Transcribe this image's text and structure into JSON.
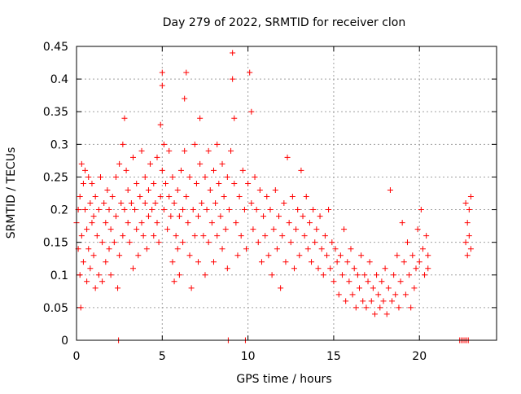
{
  "chart_data": {
    "type": "scatter",
    "title": "Day 279 of 2022, SRMTID for receiver clon",
    "xlabel": "GPS time / hours",
    "ylabel": "SRMTID / TECUs",
    "xlim": [
      0,
      24.5
    ],
    "ylim": [
      0,
      0.45
    ],
    "x_ticks": [
      0,
      5,
      10,
      15,
      20
    ],
    "x_tick_labels": [
      "0",
      "5",
      "10",
      "15",
      "20"
    ],
    "y_ticks": [
      0,
      0.05,
      0.1,
      0.15,
      0.2,
      0.25,
      0.3,
      0.35,
      0.4,
      0.45
    ],
    "y_tick_labels": [
      "0",
      "0.05",
      "0.1",
      "0.15",
      "0.2",
      "0.25",
      "0.3",
      "0.35",
      "0.4",
      "0.45"
    ],
    "grid": true,
    "legend": "none",
    "marker": "+",
    "color": "#ff0000",
    "series": [
      {
        "points": [
          [
            0.0,
            0.18
          ],
          [
            0.1,
            0.2
          ],
          [
            0.1,
            0.14
          ],
          [
            0.2,
            0.1
          ],
          [
            0.2,
            0.22
          ],
          [
            0.25,
            0.05
          ],
          [
            0.3,
            0.27
          ],
          [
            0.3,
            0.16
          ],
          [
            0.4,
            0.24
          ],
          [
            0.4,
            0.12
          ],
          [
            0.5,
            0.26
          ],
          [
            0.5,
            0.2
          ],
          [
            0.6,
            0.09
          ],
          [
            0.6,
            0.17
          ],
          [
            0.7,
            0.25
          ],
          [
            0.7,
            0.14
          ],
          [
            0.8,
            0.21
          ],
          [
            0.8,
            0.11
          ],
          [
            0.9,
            0.18
          ],
          [
            0.9,
            0.24
          ],
          [
            1.0,
            0.13
          ],
          [
            1.0,
            0.19
          ],
          [
            1.1,
            0.08
          ],
          [
            1.1,
            0.22
          ],
          [
            1.2,
            0.16
          ],
          [
            1.3,
            0.1
          ],
          [
            1.3,
            0.2
          ],
          [
            1.4,
            0.25
          ],
          [
            1.5,
            0.15
          ],
          [
            1.5,
            0.09
          ],
          [
            1.6,
            0.21
          ],
          [
            1.7,
            0.18
          ],
          [
            1.7,
            0.12
          ],
          [
            1.8,
            0.23
          ],
          [
            1.9,
            0.2
          ],
          [
            1.9,
            0.14
          ],
          [
            2.0,
            0.17
          ],
          [
            2.0,
            0.1
          ],
          [
            2.1,
            0.22
          ],
          [
            2.2,
            0.15
          ],
          [
            2.3,
            0.19
          ],
          [
            2.3,
            0.25
          ],
          [
            2.4,
            0.08
          ],
          [
            2.5,
            0.13
          ],
          [
            2.5,
            0.27
          ],
          [
            2.6,
            0.21
          ],
          [
            2.7,
            0.3
          ],
          [
            2.7,
            0.16
          ],
          [
            2.8,
            0.34
          ],
          [
            2.8,
            0.2
          ],
          [
            2.9,
            0.26
          ],
          [
            3.0,
            0.18
          ],
          [
            3.0,
            0.23
          ],
          [
            3.1,
            0.15
          ],
          [
            3.2,
            0.21
          ],
          [
            3.3,
            0.11
          ],
          [
            3.3,
            0.28
          ],
          [
            3.4,
            0.2
          ],
          [
            3.5,
            0.17
          ],
          [
            3.5,
            0.24
          ],
          [
            3.6,
            0.13
          ],
          [
            3.7,
            0.22
          ],
          [
            3.8,
            0.18
          ],
          [
            3.8,
            0.29
          ],
          [
            3.9,
            0.16
          ],
          [
            4.0,
            0.21
          ],
          [
            4.0,
            0.25
          ],
          [
            4.1,
            0.14
          ],
          [
            4.2,
            0.23
          ],
          [
            4.2,
            0.19
          ],
          [
            4.3,
            0.27
          ],
          [
            4.4,
            0.2
          ],
          [
            4.5,
            0.16
          ],
          [
            4.5,
            0.24
          ],
          [
            4.6,
            0.21
          ],
          [
            4.7,
            0.18
          ],
          [
            4.7,
            0.28
          ],
          [
            4.8,
            0.15
          ],
          [
            4.9,
            0.33
          ],
          [
            4.9,
            0.22
          ],
          [
            5.0,
            0.39
          ],
          [
            5.0,
            0.41
          ],
          [
            5.0,
            0.26
          ],
          [
            5.1,
            0.3
          ],
          [
            5.1,
            0.2
          ],
          [
            5.2,
            0.24
          ],
          [
            5.3,
            0.17
          ],
          [
            5.4,
            0.22
          ],
          [
            5.4,
            0.29
          ],
          [
            5.5,
            0.19
          ],
          [
            5.6,
            0.25
          ],
          [
            5.6,
            0.12
          ],
          [
            5.7,
            0.09
          ],
          [
            5.7,
            0.21
          ],
          [
            5.8,
            0.16
          ],
          [
            5.9,
            0.23
          ],
          [
            5.9,
            0.14
          ],
          [
            6.0,
            0.19
          ],
          [
            6.0,
            0.1
          ],
          [
            6.1,
            0.26
          ],
          [
            6.2,
            0.15
          ],
          [
            6.2,
            0.2
          ],
          [
            6.3,
            0.37
          ],
          [
            6.3,
            0.29
          ],
          [
            6.4,
            0.41
          ],
          [
            6.4,
            0.22
          ],
          [
            6.5,
            0.18
          ],
          [
            6.6,
            0.13
          ],
          [
            6.6,
            0.25
          ],
          [
            6.7,
            0.08
          ],
          [
            6.8,
            0.2
          ],
          [
            6.9,
            0.16
          ],
          [
            6.9,
            0.3
          ],
          [
            7.0,
            0.24
          ],
          [
            7.1,
            0.19
          ],
          [
            7.1,
            0.12
          ],
          [
            7.2,
            0.34
          ],
          [
            7.2,
            0.27
          ],
          [
            7.3,
            0.21
          ],
          [
            7.4,
            0.16
          ],
          [
            7.5,
            0.25
          ],
          [
            7.5,
            0.1
          ],
          [
            7.6,
            0.2
          ],
          [
            7.7,
            0.29
          ],
          [
            7.7,
            0.15
          ],
          [
            7.8,
            0.23
          ],
          [
            7.9,
            0.18
          ],
          [
            8.0,
            0.26
          ],
          [
            8.0,
            0.12
          ],
          [
            8.1,
            0.21
          ],
          [
            8.2,
            0.16
          ],
          [
            8.2,
            0.3
          ],
          [
            8.3,
            0.24
          ],
          [
            8.4,
            0.19
          ],
          [
            8.5,
            0.14
          ],
          [
            8.5,
            0.27
          ],
          [
            8.6,
            0.22
          ],
          [
            8.7,
            0.17
          ],
          [
            8.8,
            0.25
          ],
          [
            8.8,
            0.11
          ],
          [
            8.9,
            0.2
          ],
          [
            9.0,
            0.29
          ],
          [
            9.1,
            0.44
          ],
          [
            9.1,
            0.4
          ],
          [
            9.2,
            0.34
          ],
          [
            9.2,
            0.24
          ],
          [
            9.3,
            0.18
          ],
          [
            9.4,
            0.13
          ],
          [
            9.5,
            0.22
          ],
          [
            9.6,
            0.16
          ],
          [
            9.7,
            0.26
          ],
          [
            9.8,
            0.2
          ],
          [
            9.9,
            0.14
          ],
          [
            10.0,
            0.24
          ],
          [
            10.1,
            0.41
          ],
          [
            10.2,
            0.35
          ],
          [
            10.2,
            0.21
          ],
          [
            10.3,
            0.17
          ],
          [
            10.4,
            0.25
          ],
          [
            10.5,
            0.2
          ],
          [
            10.6,
            0.15
          ],
          [
            10.7,
            0.23
          ],
          [
            10.8,
            0.12
          ],
          [
            10.9,
            0.19
          ],
          [
            11.0,
            0.16
          ],
          [
            11.1,
            0.22
          ],
          [
            11.2,
            0.13
          ],
          [
            11.3,
            0.2
          ],
          [
            11.4,
            0.1
          ],
          [
            11.5,
            0.17
          ],
          [
            11.6,
            0.23
          ],
          [
            11.7,
            0.14
          ],
          [
            11.8,
            0.19
          ],
          [
            11.9,
            0.08
          ],
          [
            12.0,
            0.16
          ],
          [
            12.1,
            0.21
          ],
          [
            12.2,
            0.12
          ],
          [
            12.3,
            0.28
          ],
          [
            12.4,
            0.18
          ],
          [
            12.5,
            0.15
          ],
          [
            12.6,
            0.22
          ],
          [
            12.7,
            0.11
          ],
          [
            12.8,
            0.17
          ],
          [
            12.9,
            0.2
          ],
          [
            13.0,
            0.13
          ],
          [
            13.1,
            0.26
          ],
          [
            13.2,
            0.19
          ],
          [
            13.3,
            0.16
          ],
          [
            13.4,
            0.22
          ],
          [
            13.5,
            0.14
          ],
          [
            13.6,
            0.18
          ],
          [
            13.7,
            0.12
          ],
          [
            13.8,
            0.2
          ],
          [
            13.9,
            0.15
          ],
          [
            14.0,
            0.17
          ],
          [
            14.1,
            0.11
          ],
          [
            14.2,
            0.19
          ],
          [
            14.3,
            0.14
          ],
          [
            14.4,
            0.1
          ],
          [
            14.5,
            0.16
          ],
          [
            14.6,
            0.13
          ],
          [
            14.7,
            0.2
          ],
          [
            14.8,
            0.11
          ],
          [
            14.9,
            0.15
          ],
          [
            15.0,
            0.09
          ],
          [
            15.1,
            0.14
          ],
          [
            15.2,
            0.12
          ],
          [
            15.3,
            0.07
          ],
          [
            15.4,
            0.13
          ],
          [
            15.5,
            0.1
          ],
          [
            15.6,
            0.17
          ],
          [
            15.7,
            0.06
          ],
          [
            15.8,
            0.12
          ],
          [
            15.9,
            0.09
          ],
          [
            16.0,
            0.14
          ],
          [
            16.1,
            0.07
          ],
          [
            16.2,
            0.11
          ],
          [
            16.3,
            0.05
          ],
          [
            16.4,
            0.1
          ],
          [
            16.5,
            0.08
          ],
          [
            16.6,
            0.13
          ],
          [
            16.7,
            0.06
          ],
          [
            16.8,
            0.1
          ],
          [
            16.9,
            0.05
          ],
          [
            17.0,
            0.09
          ],
          [
            17.1,
            0.12
          ],
          [
            17.2,
            0.06
          ],
          [
            17.3,
            0.08
          ],
          [
            17.4,
            0.04
          ],
          [
            17.5,
            0.1
          ],
          [
            17.6,
            0.07
          ],
          [
            17.7,
            0.05
          ],
          [
            17.8,
            0.09
          ],
          [
            17.9,
            0.06
          ],
          [
            18.0,
            0.11
          ],
          [
            18.1,
            0.04
          ],
          [
            18.2,
            0.08
          ],
          [
            18.3,
            0.23
          ],
          [
            18.4,
            0.06
          ],
          [
            18.5,
            0.1
          ],
          [
            18.6,
            0.07
          ],
          [
            18.7,
            0.13
          ],
          [
            18.8,
            0.05
          ],
          [
            18.9,
            0.09
          ],
          [
            19.0,
            0.18
          ],
          [
            19.1,
            0.12
          ],
          [
            19.2,
            0.07
          ],
          [
            19.3,
            0.15
          ],
          [
            19.4,
            0.1
          ],
          [
            19.5,
            0.05
          ],
          [
            19.6,
            0.13
          ],
          [
            19.7,
            0.08
          ],
          [
            19.8,
            0.11
          ],
          [
            19.9,
            0.17
          ],
          [
            20.0,
            0.12
          ],
          [
            20.1,
            0.2
          ],
          [
            20.2,
            0.14
          ],
          [
            20.3,
            0.1
          ],
          [
            20.4,
            0.16
          ],
          [
            20.5,
            0.11
          ],
          [
            20.5,
            0.13
          ],
          [
            22.7,
            0.21
          ],
          [
            22.7,
            0.15
          ],
          [
            22.8,
            0.18
          ],
          [
            22.8,
            0.13
          ],
          [
            22.9,
            0.2
          ],
          [
            22.9,
            0.16
          ],
          [
            23.0,
            0.22
          ],
          [
            23.0,
            0.14
          ]
        ]
      },
      {
        "points": [
          [
            2.45,
            0
          ],
          [
            8.85,
            0
          ],
          [
            9.85,
            0
          ],
          [
            22.35,
            0
          ],
          [
            22.45,
            0
          ],
          [
            22.55,
            0
          ],
          [
            22.65,
            0
          ],
          [
            22.75,
            0
          ],
          [
            22.85,
            0
          ]
        ]
      }
    ]
  }
}
